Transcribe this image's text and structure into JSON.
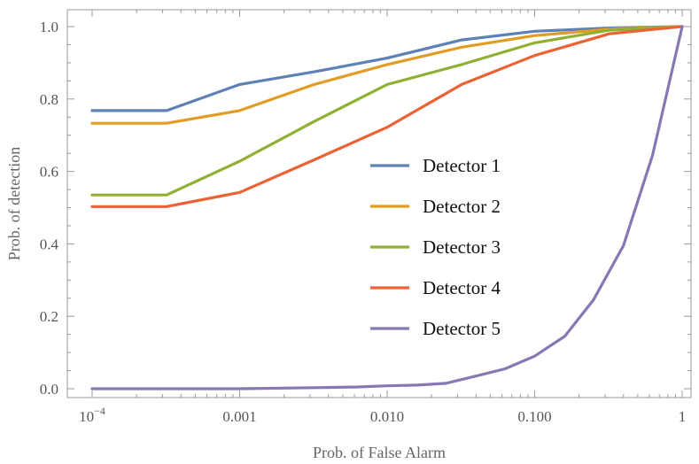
{
  "chart_data": {
    "type": "line",
    "title": "",
    "xlabel": "Prob. of False Alarm",
    "ylabel": "Prob. of detection",
    "x_scale": "log",
    "xlim": [
      0.0001,
      1
    ],
    "ylim": [
      0,
      1.02
    ],
    "grid": false,
    "legend_position": "center-right",
    "x_ticks": [
      {
        "value": 0.0001,
        "base": "10",
        "exp": "−4"
      },
      {
        "value": 0.001,
        "label": "0.001"
      },
      {
        "value": 0.01,
        "label": "0.010"
      },
      {
        "value": 0.1,
        "label": "0.100"
      },
      {
        "value": 1,
        "label": "1"
      }
    ],
    "y_ticks": [
      {
        "value": 0.0,
        "label": "0.0"
      },
      {
        "value": 0.2,
        "label": "0.2"
      },
      {
        "value": 0.4,
        "label": "0.4"
      },
      {
        "value": 0.6,
        "label": "0.6"
      },
      {
        "value": 0.8,
        "label": "0.8"
      },
      {
        "value": 1.0,
        "label": "1.0"
      }
    ],
    "series": [
      {
        "name": "Detector 1",
        "color": "#5e81b5",
        "points": [
          [
            0.0001,
            0.768
          ],
          [
            0.00032,
            0.768
          ],
          [
            0.001,
            0.84
          ],
          [
            0.0032,
            0.875
          ],
          [
            0.01,
            0.913
          ],
          [
            0.032,
            0.963
          ],
          [
            0.1,
            0.987
          ],
          [
            0.32,
            0.996
          ],
          [
            1,
            1.0
          ]
        ]
      },
      {
        "name": "Detector 2",
        "color": "#e19c24",
        "points": [
          [
            0.0001,
            0.733
          ],
          [
            0.00032,
            0.733
          ],
          [
            0.001,
            0.768
          ],
          [
            0.0032,
            0.84
          ],
          [
            0.01,
            0.895
          ],
          [
            0.032,
            0.943
          ],
          [
            0.1,
            0.975
          ],
          [
            0.32,
            0.993
          ],
          [
            1,
            1.0
          ]
        ]
      },
      {
        "name": "Detector 3",
        "color": "#8fb032",
        "points": [
          [
            0.0001,
            0.535
          ],
          [
            0.00032,
            0.535
          ],
          [
            0.001,
            0.628
          ],
          [
            0.0032,
            0.738
          ],
          [
            0.01,
            0.84
          ],
          [
            0.032,
            0.895
          ],
          [
            0.1,
            0.955
          ],
          [
            0.32,
            0.99
          ],
          [
            1,
            1.0
          ]
        ]
      },
      {
        "name": "Detector 4",
        "color": "#eb6235",
        "points": [
          [
            0.0001,
            0.503
          ],
          [
            0.00032,
            0.503
          ],
          [
            0.001,
            0.542
          ],
          [
            0.0032,
            0.632
          ],
          [
            0.01,
            0.722
          ],
          [
            0.032,
            0.84
          ],
          [
            0.1,
            0.92
          ],
          [
            0.32,
            0.98
          ],
          [
            1,
            1.0
          ]
        ]
      },
      {
        "name": "Detector 5",
        "color": "#8778b3",
        "points": [
          [
            0.0001,
            0.0
          ],
          [
            0.001,
            0.0
          ],
          [
            0.0032,
            0.003
          ],
          [
            0.0063,
            0.005
          ],
          [
            0.01,
            0.008
          ],
          [
            0.016,
            0.01
          ],
          [
            0.025,
            0.015
          ],
          [
            0.04,
            0.035
          ],
          [
            0.063,
            0.055
          ],
          [
            0.1,
            0.09
          ],
          [
            0.16,
            0.145
          ],
          [
            0.25,
            0.245
          ],
          [
            0.4,
            0.395
          ],
          [
            0.63,
            0.645
          ],
          [
            1,
            1.0
          ]
        ]
      }
    ]
  }
}
